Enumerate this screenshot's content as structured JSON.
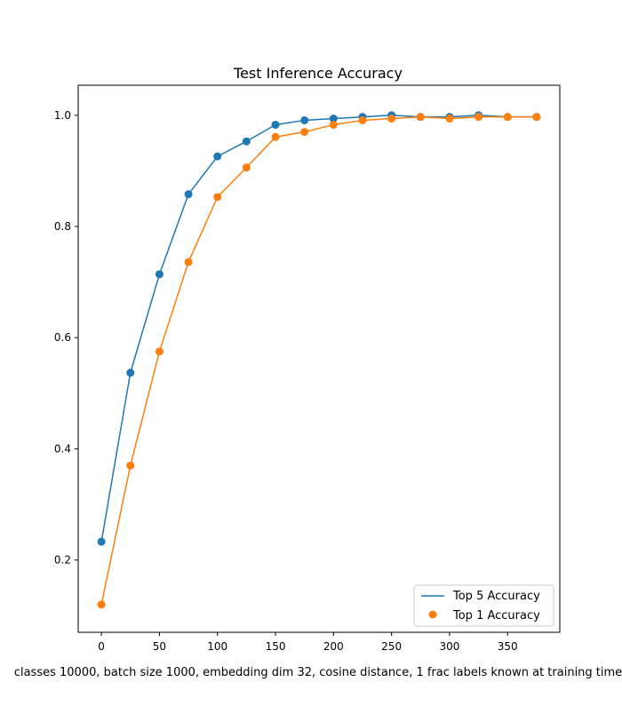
{
  "chart_data": {
    "type": "line",
    "title": "Test Inference Accuracy",
    "xlabel": "classes 10000, batch size 1000, embedding dim 32, cosine distance, 1 frac labels known at training time",
    "ylabel": "",
    "xlim": [
      -20,
      395
    ],
    "ylim": [
      0.07,
      1.054
    ],
    "xticks": [
      0,
      50,
      100,
      150,
      200,
      250,
      300,
      350
    ],
    "yticks": [
      0.2,
      0.4,
      0.6,
      0.8,
      1.0
    ],
    "ytick_labels": [
      "0.2",
      "0.4",
      "0.6",
      "0.8",
      "1.0"
    ],
    "grid": false,
    "legend_position": "lower right",
    "x": [
      0,
      25,
      50,
      75,
      100,
      125,
      150,
      175,
      200,
      225,
      250,
      275,
      300,
      325,
      350,
      375
    ],
    "series": [
      {
        "name": "Top 5 Accuracy",
        "color": "#1f77b4",
        "values": [
          0.233,
          0.537,
          0.714,
          0.858,
          0.926,
          0.953,
          0.983,
          0.991,
          0.994,
          0.997,
          1.0,
          0.997,
          0.997,
          1.0,
          0.997,
          0.997
        ]
      },
      {
        "name": "Top 1 Accuracy",
        "color": "#ff7f0e",
        "values": [
          0.12,
          0.37,
          0.575,
          0.736,
          0.853,
          0.906,
          0.961,
          0.97,
          0.983,
          0.991,
          0.994,
          0.997,
          0.994,
          0.997,
          0.997,
          0.997
        ]
      }
    ]
  }
}
